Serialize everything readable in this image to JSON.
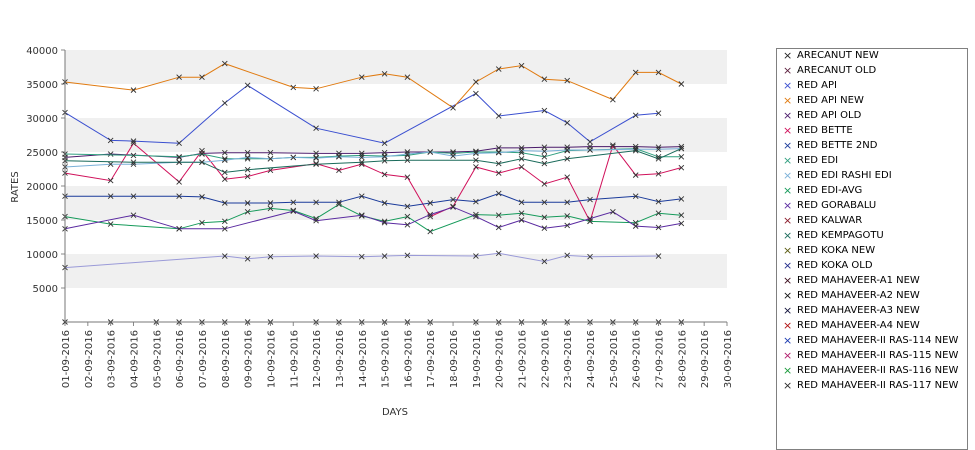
{
  "chart_data": {
    "type": "line",
    "xlabel": "DAYS",
    "ylabel": "RATES",
    "ylim": [
      0,
      40000
    ],
    "yticks": [
      "40000",
      "35000",
      "30000",
      "25000",
      "20000",
      "15000",
      "10000",
      "5000"
    ],
    "categories": [
      "01-09-2016",
      "02-09-2016",
      "03-09-2016",
      "04-09-2016",
      "05-09-2016",
      "06-09-2016",
      "07-09-2016",
      "08-09-2016",
      "09-09-2016",
      "10-09-2016",
      "11-09-2016",
      "12-09-2016",
      "13-09-2016",
      "14-09-2016",
      "15-09-2016",
      "16-09-2016",
      "17-09-2016",
      "18-09-2016",
      "19-09-2016",
      "20-09-2016",
      "21-09-2016",
      "22-09-2016",
      "23-09-2016",
      "24-09-2016",
      "25-09-2016",
      "26-09-2016",
      "27-09-2016",
      "28-09-2016",
      "29-09-2016",
      "30-09-2016"
    ],
    "grid": "alternating horizontal bands",
    "legend_position": "right",
    "series": [
      {
        "name": "ARECANUT NEW",
        "color": "#222222",
        "values": [
          0,
          null,
          0,
          null,
          0,
          0,
          0,
          0,
          0,
          0,
          null,
          0,
          0,
          0,
          0,
          0,
          0,
          null,
          0,
          0,
          0,
          0,
          0,
          0,
          0,
          0,
          0,
          0,
          null,
          null
        ]
      },
      {
        "name": "ARECANUT OLD",
        "color": "#5a1e3c",
        "values": [
          null,
          null,
          null,
          null,
          null,
          null,
          null,
          null,
          null,
          null,
          null,
          null,
          null,
          null,
          null,
          null,
          null,
          null,
          null,
          null,
          null,
          null,
          null,
          null,
          null,
          null,
          null,
          null,
          null,
          null
        ]
      },
      {
        "name": "RED API",
        "color": "#3a4fd0",
        "values": [
          30800,
          null,
          26700,
          26600,
          null,
          26300,
          null,
          32200,
          34800,
          null,
          null,
          28500,
          null,
          null,
          26300,
          null,
          null,
          null,
          33600,
          30300,
          null,
          31100,
          29300,
          26500,
          null,
          30400,
          30700,
          null,
          null,
          null
        ]
      },
      {
        "name": "RED API NEW",
        "color": "#e07a10",
        "values": [
          35300,
          null,
          null,
          34100,
          null,
          36000,
          36000,
          38000,
          null,
          null,
          34500,
          34300,
          null,
          36000,
          36500,
          36000,
          null,
          31500,
          35300,
          37200,
          37700,
          35700,
          35500,
          null,
          32700,
          36700,
          36700,
          35000,
          null,
          null
        ]
      },
      {
        "name": "RED API OLD",
        "color": "#4a1a6a",
        "values": [
          24200,
          null,
          24700,
          null,
          null,
          24200,
          24800,
          24900,
          24900,
          24900,
          null,
          24800,
          24800,
          24800,
          24900,
          25000,
          null,
          25000,
          25100,
          25600,
          25600,
          25700,
          25700,
          25800,
          25800,
          25800,
          25700,
          25800,
          null,
          null
        ]
      },
      {
        "name": "RED BETTE",
        "color": "#d0105a",
        "values": [
          21900,
          null,
          20800,
          26300,
          null,
          20600,
          25200,
          21000,
          21400,
          22300,
          null,
          23300,
          22300,
          23200,
          21700,
          21300,
          15500,
          17000,
          22800,
          21900,
          22800,
          20300,
          21300,
          14800,
          26000,
          21600,
          21800,
          22700,
          null,
          null
        ]
      },
      {
        "name": "RED BETTE 2ND",
        "color": "#1a3a9a",
        "values": [
          18500,
          null,
          18500,
          18500,
          null,
          18500,
          18400,
          17500,
          17500,
          17500,
          17600,
          17600,
          17600,
          18500,
          17500,
          17000,
          17500,
          18000,
          17700,
          18900,
          17600,
          17600,
          17600,
          18000,
          null,
          18500,
          17700,
          18100,
          null,
          null
        ]
      },
      {
        "name": "RED EDI",
        "color": "#2f9f7f",
        "values": [
          24700,
          null,
          null,
          24500,
          null,
          24300,
          24700,
          24000,
          24000,
          24000,
          24200,
          24200,
          24400,
          24500,
          24400,
          24500,
          25000,
          24800,
          25000,
          25000,
          24900,
          24300,
          25200,
          25300,
          null,
          25500,
          24300,
          24300,
          null,
          null
        ]
      },
      {
        "name": "RED EDI RASHI EDI",
        "color": "#7ab0d8",
        "values": [
          22800,
          null,
          23200,
          23200,
          null,
          23500,
          23500,
          23800,
          24200,
          24000,
          24200,
          24100,
          24300,
          24200,
          24300,
          24700,
          25000,
          24400,
          24800,
          24900,
          25200,
          25100,
          25300,
          25300,
          null,
          25400,
          25400,
          25500,
          null,
          null
        ]
      },
      {
        "name": "RED EDI-AVG",
        "color": "#159a5a",
        "values": [
          15500,
          null,
          14400,
          null,
          null,
          13700,
          14600,
          14800,
          16200,
          16700,
          16400,
          15200,
          17300,
          15600,
          14800,
          15500,
          13300,
          null,
          15800,
          15700,
          16000,
          15400,
          15600,
          14800,
          null,
          14600,
          16000,
          15700,
          null,
          null
        ]
      },
      {
        "name": "RED GORABALU",
        "color": "#5a2aa0",
        "values": [
          13700,
          null,
          null,
          15700,
          null,
          13700,
          null,
          13700,
          null,
          null,
          16300,
          14900,
          null,
          15700,
          14600,
          14300,
          15800,
          16900,
          15500,
          13900,
          15000,
          13800,
          14200,
          15200,
          16200,
          14100,
          13900,
          14500,
          null,
          null
        ]
      },
      {
        "name": "RED KALWAR",
        "color": "#8a1a2a",
        "values": [
          null,
          null,
          null,
          null,
          null,
          null,
          null,
          null,
          null,
          null,
          null,
          null,
          null,
          null,
          null,
          null,
          null,
          null,
          null,
          null,
          null,
          null,
          null,
          null,
          null,
          null,
          null,
          null,
          null,
          null
        ]
      },
      {
        "name": "RED KEMPAGOTU",
        "color": "#1a6a5a",
        "values": [
          23700,
          null,
          null,
          23500,
          null,
          23500,
          23500,
          22000,
          22400,
          null,
          null,
          23200,
          null,
          23500,
          23700,
          23800,
          null,
          null,
          23800,
          23300,
          24000,
          23300,
          24000,
          null,
          null,
          25200,
          24000,
          25500,
          null,
          null
        ]
      },
      {
        "name": "RED KOKA NEW",
        "color": "#5a5a10",
        "values": [
          null,
          null,
          null,
          null,
          null,
          null,
          null,
          null,
          null,
          null,
          null,
          null,
          null,
          null,
          null,
          null,
          null,
          null,
          null,
          null,
          null,
          null,
          null,
          null,
          null,
          null,
          null,
          null,
          null,
          null
        ]
      },
      {
        "name": "RED KOKA OLD",
        "color": "#202a8a",
        "values": [
          null,
          null,
          null,
          null,
          null,
          null,
          null,
          null,
          null,
          null,
          null,
          null,
          null,
          null,
          null,
          null,
          null,
          null,
          null,
          null,
          null,
          null,
          null,
          null,
          null,
          null,
          null,
          null,
          null,
          null
        ]
      },
      {
        "name": "RED MAHAVEER-A1 NEW",
        "color": "#3a0a1a",
        "values": [
          null,
          null,
          null,
          null,
          null,
          null,
          null,
          null,
          null,
          null,
          null,
          null,
          null,
          null,
          null,
          null,
          null,
          null,
          null,
          null,
          null,
          null,
          null,
          null,
          null,
          null,
          null,
          null,
          null,
          null
        ]
      },
      {
        "name": "RED MAHAVEER-A2 NEW",
        "color": "#101010",
        "values": [
          null,
          null,
          null,
          null,
          null,
          null,
          null,
          null,
          null,
          null,
          null,
          null,
          null,
          null,
          null,
          null,
          null,
          null,
          null,
          null,
          null,
          null,
          null,
          null,
          null,
          null,
          null,
          null,
          null,
          null
        ]
      },
      {
        "name": "RED MAHAVEER-A3 NEW",
        "color": "#10103a",
        "values": [
          null,
          null,
          null,
          null,
          null,
          null,
          null,
          null,
          null,
          null,
          null,
          null,
          null,
          null,
          null,
          null,
          null,
          null,
          null,
          null,
          null,
          null,
          null,
          null,
          null,
          null,
          null,
          null,
          null,
          null
        ]
      },
      {
        "name": "RED MAHAVEER-A4 NEW",
        "color": "#b01010",
        "values": [
          null,
          null,
          null,
          null,
          null,
          null,
          null,
          null,
          null,
          null,
          null,
          null,
          null,
          null,
          null,
          null,
          null,
          null,
          null,
          null,
          null,
          null,
          null,
          null,
          null,
          null,
          null,
          null,
          null,
          null
        ]
      },
      {
        "name": "RED MAHAVEER-II RAS-114 NEW",
        "color": "#1a3ab0",
        "values": [
          null,
          null,
          null,
          null,
          null,
          null,
          null,
          null,
          null,
          null,
          null,
          null,
          null,
          null,
          null,
          null,
          null,
          null,
          null,
          null,
          null,
          null,
          null,
          null,
          null,
          null,
          null,
          null,
          null,
          null
        ]
      },
      {
        "name": "RED MAHAVEER-II RAS-115 NEW",
        "color": "#b01a6a",
        "values": [
          null,
          null,
          null,
          null,
          null,
          null,
          null,
          null,
          null,
          null,
          null,
          null,
          null,
          null,
          null,
          null,
          null,
          null,
          null,
          null,
          null,
          null,
          null,
          null,
          null,
          null,
          null,
          null,
          null,
          null
        ]
      },
      {
        "name": "RED MAHAVEER-II RAS-116 NEW",
        "color": "#1a9a3a",
        "values": [
          null,
          null,
          null,
          null,
          null,
          null,
          null,
          null,
          null,
          null,
          null,
          null,
          null,
          null,
          null,
          null,
          null,
          null,
          null,
          null,
          null,
          null,
          null,
          null,
          null,
          null,
          null,
          null,
          null,
          null
        ]
      },
      {
        "name": "RED MAHAVEER-II RAS-117 NEW",
        "color": "#2a2a2a",
        "values": [
          null,
          null,
          null,
          null,
          null,
          null,
          null,
          null,
          null,
          null,
          null,
          null,
          null,
          null,
          null,
          null,
          null,
          null,
          null,
          null,
          null,
          null,
          null,
          null,
          null,
          null,
          null,
          null,
          null,
          null
        ]
      },
      {
        "name": "",
        "color": "#9a9ad8",
        "values": [
          8000,
          null,
          null,
          null,
          null,
          null,
          null,
          9700,
          9300,
          9600,
          null,
          9700,
          null,
          9600,
          9700,
          9800,
          null,
          null,
          9700,
          10100,
          null,
          8900,
          9800,
          9600,
          null,
          null,
          9700,
          null,
          null,
          null
        ]
      }
    ]
  }
}
